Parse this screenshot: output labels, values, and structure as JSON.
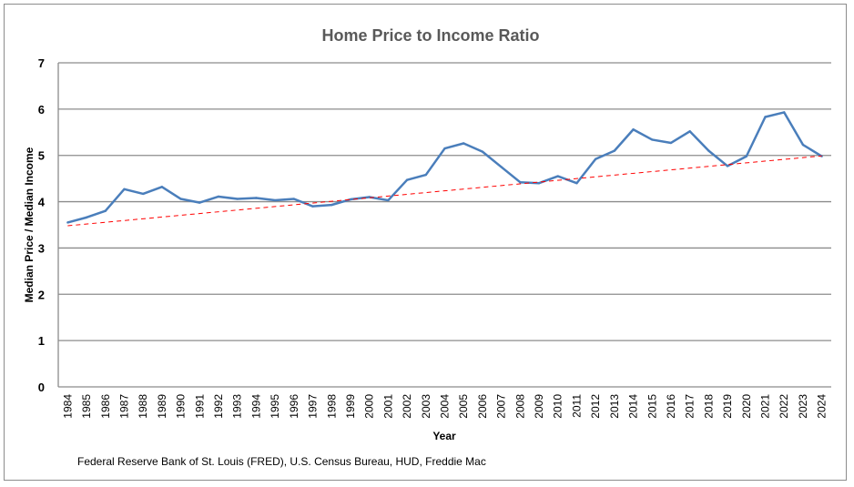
{
  "chart_data": {
    "type": "line",
    "title": "Home Price to Income Ratio",
    "xlabel": "Year",
    "ylabel": "Median Price / Median Income",
    "ylim": [
      0,
      7
    ],
    "yticks": [
      "0",
      "1",
      "2",
      "3",
      "4",
      "5",
      "6",
      "7"
    ],
    "grid": true,
    "categories": [
      "1984",
      "1985",
      "1986",
      "1987",
      "1988",
      "1989",
      "1990",
      "1991",
      "1992",
      "1993",
      "1994",
      "1995",
      "1996",
      "1997",
      "1998",
      "1999",
      "2000",
      "2001",
      "2002",
      "2003",
      "2004",
      "2005",
      "2006",
      "2007",
      "2008",
      "2009",
      "2010",
      "2011",
      "2012",
      "2013",
      "2014",
      "2015",
      "2016",
      "2017",
      "2018",
      "2019",
      "2020",
      "2021",
      "2022",
      "2023",
      "2024"
    ],
    "series": [
      {
        "values": [
          3.55,
          3.66,
          3.8,
          4.27,
          4.17,
          4.32,
          4.06,
          3.98,
          4.11,
          4.06,
          4.08,
          4.03,
          4.06,
          3.9,
          3.93,
          4.05,
          4.1,
          4.03,
          4.47,
          4.58,
          5.15,
          5.26,
          5.08,
          4.75,
          4.42,
          4.4,
          4.55,
          4.4,
          4.92,
          5.1,
          5.56,
          5.34,
          5.27,
          5.52,
          5.1,
          4.77,
          4.98,
          5.83,
          5.93,
          5.23,
          4.98
        ],
        "color": "#4a7ebb",
        "style": "solid"
      },
      {
        "values_linear_trend": [
          3.48,
          4.99
        ],
        "color": "#ff0000",
        "style": "dashed"
      }
    ],
    "source": "Federal Reserve Bank of St. Louis (FRED), U.S. Census Bureau, HUD, Freddie Mac"
  }
}
